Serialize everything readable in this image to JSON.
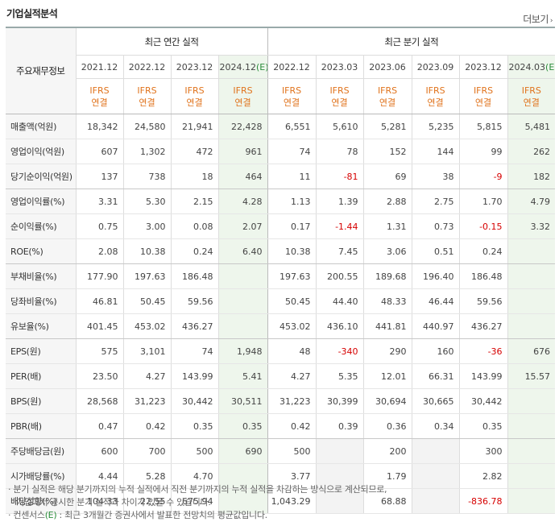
{
  "title": "기업실적분석",
  "more_label": "더보기",
  "corner_label": "주요재무정보",
  "annual_label": "최근 연간 실적",
  "quarter_label": "최근 분기 실적",
  "annual_periods": [
    "2021.12",
    "2022.12",
    "2023.12",
    "2024.12"
  ],
  "annual_est_suffix": "(E)",
  "quarter_periods": [
    "2022.12",
    "2023.03",
    "2023.06",
    "2023.09",
    "2023.12",
    "2024.03"
  ],
  "quarter_est_suffix": "(E)",
  "ifrs_top": "IFRS",
  "ifrs_bottom": "연결",
  "rows": [
    {
      "label": "매출액(억원)",
      "annual": [
        "18,342",
        "24,580",
        "21,941",
        "22,428"
      ],
      "quarter": [
        "6,551",
        "5,610",
        "5,281",
        "5,235",
        "5,815",
        "5,481"
      ]
    },
    {
      "label": "영업이익(억원)",
      "annual": [
        "607",
        "1,302",
        "472",
        "961"
      ],
      "quarter": [
        "74",
        "78",
        "152",
        "144",
        "99",
        "262"
      ]
    },
    {
      "label": "당기순이익(억원)",
      "annual": [
        "137",
        "738",
        "18",
        "464"
      ],
      "quarter": [
        "11",
        "-81",
        "69",
        "38",
        "-9",
        "182"
      ]
    },
    {
      "label": "영업이익률(%)",
      "annual": [
        "3.31",
        "5.30",
        "2.15",
        "4.28"
      ],
      "quarter": [
        "1.13",
        "1.39",
        "2.88",
        "2.75",
        "1.70",
        "4.79"
      ]
    },
    {
      "label": "순이익률(%)",
      "annual": [
        "0.75",
        "3.00",
        "0.08",
        "2.07"
      ],
      "quarter": [
        "0.17",
        "-1.44",
        "1.31",
        "0.73",
        "-0.15",
        "3.32"
      ]
    },
    {
      "label": "ROE(%)",
      "annual": [
        "2.08",
        "10.38",
        "0.24",
        "6.40"
      ],
      "quarter": [
        "10.38",
        "7.45",
        "3.06",
        "0.51",
        "0.24",
        ""
      ]
    },
    {
      "label": "부채비율(%)",
      "annual": [
        "177.90",
        "197.63",
        "186.48",
        ""
      ],
      "quarter": [
        "197.63",
        "200.55",
        "189.68",
        "196.40",
        "186.48",
        ""
      ]
    },
    {
      "label": "당좌비율(%)",
      "annual": [
        "46.81",
        "50.45",
        "59.56",
        ""
      ],
      "quarter": [
        "50.45",
        "44.40",
        "48.33",
        "46.44",
        "59.56",
        ""
      ]
    },
    {
      "label": "유보율(%)",
      "annual": [
        "401.45",
        "453.02",
        "436.27",
        ""
      ],
      "quarter": [
        "453.02",
        "436.10",
        "441.81",
        "440.97",
        "436.27",
        ""
      ]
    },
    {
      "label": "EPS(원)",
      "annual": [
        "575",
        "3,101",
        "74",
        "1,948"
      ],
      "quarter": [
        "48",
        "-340",
        "290",
        "160",
        "-36",
        "676"
      ]
    },
    {
      "label": "PER(배)",
      "annual": [
        "23.50",
        "4.27",
        "143.99",
        "5.41"
      ],
      "quarter": [
        "4.27",
        "5.35",
        "12.01",
        "66.31",
        "143.99",
        "15.57"
      ]
    },
    {
      "label": "BPS(원)",
      "annual": [
        "28,568",
        "31,223",
        "30,442",
        "30,511"
      ],
      "quarter": [
        "31,223",
        "30,399",
        "30,694",
        "30,665",
        "30,442",
        ""
      ]
    },
    {
      "label": "PBR(배)",
      "annual": [
        "0.47",
        "0.42",
        "0.35",
        "0.35"
      ],
      "quarter": [
        "0.42",
        "0.39",
        "0.36",
        "0.34",
        "0.35",
        ""
      ]
    },
    {
      "label": "주당배당금(원)",
      "annual": [
        "600",
        "700",
        "500",
        "690"
      ],
      "quarter": [
        "500",
        "",
        "200",
        "",
        "300",
        ""
      ]
    },
    {
      "label": "시가배당률(%)",
      "annual": [
        "4.44",
        "5.28",
        "4.70",
        ""
      ],
      "quarter": [
        "3.77",
        "",
        "1.79",
        "",
        "2.82",
        ""
      ]
    },
    {
      "label": "배당성향(%)",
      "annual": [
        "104.33",
        "22.55",
        "675.94",
        ""
      ],
      "quarter": [
        "1,043.29",
        "",
        "68.88",
        "",
        "-836.78",
        ""
      ]
    }
  ],
  "notes": {
    "line1": "· 분기 실적은 해당 분기까지의 누적 실적에서 직전 분기까지의 누적 실적을 차감하는 방식으로 계산되므로,",
    "line2": "기업에서 공시한 분기 실적과 차이가 있을 수 있습니다.",
    "line3_prefix": "· 컨센서스",
    "line3_e": "(E)",
    "line3_suffix": " : 최근 3개월간 증권사에서 발표한 전망치의 평균값입니다."
  }
}
